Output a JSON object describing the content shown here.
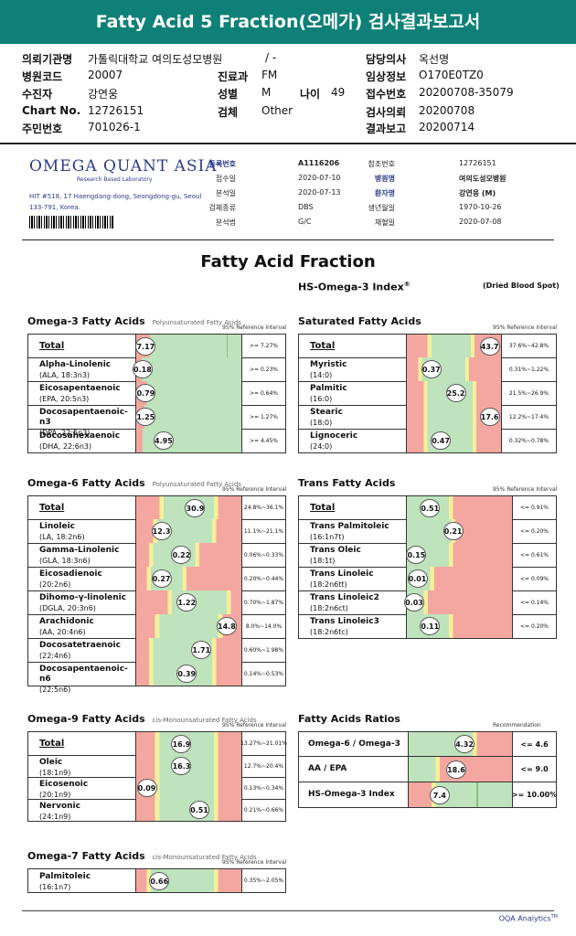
{
  "header": {
    "title": "Fatty Acid 5 Fraction(오메가) 검사결과보고서"
  },
  "patient": {
    "hospital_label": "의뢰기관명",
    "hospital": "가톨릭대학교 여의도성모병원",
    "slash": "/ -",
    "code_label": "병원코드",
    "code": "20007",
    "receiver_label": "수진자",
    "receiver": "강연웅",
    "chart_label": "Chart No.",
    "chart": "12726151",
    "id_label": "주민번호",
    "id": "701026-1",
    "dept_label": "진료과",
    "dept": "FM",
    "sex_label": "성별",
    "sex": "M",
    "age_label": "나이",
    "age": "49",
    "test_label": "검체",
    "test": "Other",
    "doctor_label": "담당의사",
    "doctor": "옥선명",
    "info_label": "임상정보",
    "info": "O170E0TZ0",
    "reg_label": "접수번호",
    "reg": "20200708-35079",
    "req_label": "검사의뢰",
    "req": "20200708",
    "report_label": "결과보고",
    "report": "20200714"
  },
  "lab": {
    "logo": "OMEGA QUANT ASIA",
    "logo_sub": "Research Based Laboratory",
    "address": "HIT #518, 17 Haengdang-dong, Seongdong-gu, Seoul 133-791, Korea.",
    "fields_left": [
      {
        "k": "등록번호",
        "v": "A1116206",
        "bold": true
      },
      {
        "k": "접수일",
        "v": "2020-07-10",
        "bold": false
      },
      {
        "k": "분석일",
        "v": "2020-07-13",
        "bold": false
      },
      {
        "k": "검체종류",
        "v": "DBS",
        "bold": false
      },
      {
        "k": "분석법",
        "v": "G/C",
        "bold": false
      }
    ],
    "fields_right": [
      {
        "k": "참조번호",
        "v": "12726151",
        "bold": false
      },
      {
        "k": "병원명",
        "v": "여의도성모병원",
        "bold": true
      },
      {
        "k": "환자명",
        "v": "강연웅 (M)",
        "bold": true
      },
      {
        "k": "생년월일",
        "v": "1970-10-26",
        "bold": false
      },
      {
        "k": "채혈일",
        "v": "2020-07-08",
        "bold": false
      }
    ]
  },
  "report": {
    "title": "Fatty Acid Fraction",
    "subtitle": "HS-Omega-3 Index",
    "subtitle_sup": "®",
    "sample": "(Dried Blood Spot)"
  },
  "panels": [
    {
      "title": "Omega-3 Fatty Acids",
      "note": "Polyunsaturated Fatty Acids",
      "ref_header": "95% Reference Interval",
      "rows": [
        {
          "name": "Total",
          "sub": "",
          "total": true,
          "value": "7.17",
          "pos": 0.09,
          "bands": [
            [
              "#f4a7a0",
              0.13
            ],
            [
              "#bfe3bd",
              0.73
            ],
            [
              "#4e9e4e",
              0.005
            ],
            [
              "#bfe3bd",
              0.135
            ]
          ],
          "ref": ">= 7.27%"
        },
        {
          "name": "Alpha-Linolenic",
          "sub": "(ALA, 18:3n3)",
          "total": false,
          "value": "0.18",
          "pos": 0.06,
          "bands": [
            [
              "#f4a7a0",
              0.05
            ],
            [
              "#bfe3bd",
              0.95
            ]
          ],
          "ref": ">= 0.23%"
        },
        {
          "name": "Eicosapentaenoic",
          "sub": "(EPA, 20:5n3)",
          "total": false,
          "value": "0.79",
          "pos": 0.09,
          "bands": [
            [
              "#f4a7a0",
              0.1
            ],
            [
              "#bfe3bd",
              0.9
            ]
          ],
          "ref": ">= 0.64%"
        },
        {
          "name": "Docosapentaenoic-n3",
          "sub": "(DPA, 22:5n3)",
          "total": false,
          "value": "1.25",
          "pos": 0.09,
          "bands": [
            [
              "#f4a7a0",
              0.08
            ],
            [
              "#bfe3bd",
              0.92
            ]
          ],
          "ref": ">= 1.27%"
        },
        {
          "name": "Docosahexaenoic",
          "sub": "(DHA, 22:6n3)",
          "total": false,
          "value": "4.95",
          "pos": 0.26,
          "bands": [
            [
              "#f4a7a0",
              0.06
            ],
            [
              "#bfe3bd",
              0.94
            ]
          ],
          "ref": ">= 4.45%"
        }
      ]
    },
    {
      "title": "Saturated Fatty Acids",
      "note": "",
      "ref_header": "95% Reference Interval",
      "rows": [
        {
          "name": "Total",
          "sub": "",
          "total": true,
          "value": "43.7",
          "pos": 0.88,
          "bands": [
            [
              "#f4a7a0",
              0.22
            ],
            [
              "#f6f09a",
              0.04
            ],
            [
              "#bfe3bd",
              0.42
            ],
            [
              "#f6f09a",
              0.04
            ],
            [
              "#f4a7a0",
              0.28
            ]
          ],
          "ref": "37.6%~42.8%"
        },
        {
          "name": "Myristic",
          "sub": "(14:0)",
          "total": false,
          "value": "0.37",
          "pos": 0.26,
          "bands": [
            [
              "#f4a7a0",
              0.12
            ],
            [
              "#f6f09a",
              0.04
            ],
            [
              "#bfe3bd",
              0.46
            ],
            [
              "#f6f09a",
              0.04
            ],
            [
              "#f4a7a0",
              0.34
            ]
          ],
          "ref": "0.31%~1.22%"
        },
        {
          "name": "Palmitic",
          "sub": "(16:0)",
          "total": false,
          "value": "25.2",
          "pos": 0.52,
          "bands": [
            [
              "#f4a7a0",
              0.18
            ],
            [
              "#f6f09a",
              0.04
            ],
            [
              "#bfe3bd",
              0.48
            ],
            [
              "#f6f09a",
              0.04
            ],
            [
              "#f4a7a0",
              0.26
            ]
          ],
          "ref": "21.5%~26.9%"
        },
        {
          "name": "Stearic",
          "sub": "(18:0)",
          "total": false,
          "value": "17.6",
          "pos": 0.88,
          "bands": [
            [
              "#f4a7a0",
              0.18
            ],
            [
              "#f6f09a",
              0.04
            ],
            [
              "#bfe3bd",
              0.48
            ],
            [
              "#f6f09a",
              0.04
            ],
            [
              "#f4a7a0",
              0.26
            ]
          ],
          "ref": "12.2%~17.4%"
        },
        {
          "name": "Lignoceric",
          "sub": "(24:0)",
          "total": false,
          "value": "0.47",
          "pos": 0.36,
          "bands": [
            [
              "#f4a7a0",
              0.18
            ],
            [
              "#f6f09a",
              0.04
            ],
            [
              "#bfe3bd",
              0.48
            ],
            [
              "#f6f09a",
              0.04
            ],
            [
              "#f4a7a0",
              0.26
            ]
          ],
          "ref": "0.32%~0.78%"
        }
      ]
    },
    {
      "title": "Omega-6 Fatty Acids",
      "note": "Polyunsaturated Fatty Acids",
      "ref_header": "95% Reference Interval",
      "rows": [
        {
          "name": "Total",
          "sub": "",
          "total": true,
          "value": "30.9",
          "pos": 0.56,
          "bands": [
            [
              "#f4a7a0",
              0.22
            ],
            [
              "#f6f09a",
              0.04
            ],
            [
              "#bfe3bd",
              0.48
            ],
            [
              "#f6f09a",
              0.04
            ],
            [
              "#f4a7a0",
              0.22
            ]
          ],
          "ref": "24.8%~36.1%"
        },
        {
          "name": "Linoleic",
          "sub": "(LA, 18:2n6)",
          "total": false,
          "value": "12.3",
          "pos": 0.24,
          "bands": [
            [
              "#f4a7a0",
              0.16
            ],
            [
              "#f6f09a",
              0.04
            ],
            [
              "#bfe3bd",
              0.52
            ],
            [
              "#f6f09a",
              0.04
            ],
            [
              "#f4a7a0",
              0.24
            ]
          ],
          "ref": "11.1%~21.1%"
        },
        {
          "name": "Gamma-Linolenic",
          "sub": "(GLA, 18:3n6)",
          "total": false,
          "value": "0.22",
          "pos": 0.43,
          "bands": [
            [
              "#f4a7a0",
              0.12
            ],
            [
              "#f6f09a",
              0.04
            ],
            [
              "#bfe3bd",
              0.4
            ],
            [
              "#f6f09a",
              0.04
            ],
            [
              "#f4a7a0",
              0.4
            ]
          ],
          "ref": "0.06%~0.33%"
        },
        {
          "name": "Eicosadienoic",
          "sub": "(20:2n6)",
          "total": false,
          "value": "0.27",
          "pos": 0.24,
          "bands": [
            [
              "#f4a7a0",
              0.1
            ],
            [
              "#f6f09a",
              0.04
            ],
            [
              "#bfe3bd",
              0.3
            ],
            [
              "#f6f09a",
              0.04
            ],
            [
              "#f4a7a0",
              0.52
            ]
          ],
          "ref": "0.20%~0.44%"
        },
        {
          "name": "Dihomo-γ-linolenic",
          "sub": "(DGLA, 20:3n6)",
          "total": false,
          "value": "1.22",
          "pos": 0.48,
          "bands": [
            [
              "#f4a7a0",
              0.3
            ],
            [
              "#f6f09a",
              0.04
            ],
            [
              "#bfe3bd",
              0.52
            ],
            [
              "#f6f09a",
              0.04
            ],
            [
              "#f4a7a0",
              0.1
            ]
          ],
          "ref": "0.70%~1.87%"
        },
        {
          "name": "Arachidonic",
          "sub": "(AA, 20:4n6)",
          "total": false,
          "value": "14.8",
          "pos": 0.86,
          "bands": [
            [
              "#f4a7a0",
              0.18
            ],
            [
              "#f6f09a",
              0.04
            ],
            [
              "#bfe3bd",
              0.56
            ],
            [
              "#f6f09a",
              0.04
            ],
            [
              "#f4a7a0",
              0.18
            ]
          ],
          "ref": "8.0%~14.0%"
        },
        {
          "name": "Docosatetraenoic",
          "sub": "(22:4n6)",
          "total": false,
          "value": "1.71",
          "pos": 0.62,
          "bands": [
            [
              "#f4a7a0",
              0.12
            ],
            [
              "#f6f09a",
              0.04
            ],
            [
              "#bfe3bd",
              0.56
            ],
            [
              "#f6f09a",
              0.04
            ],
            [
              "#f4a7a0",
              0.24
            ]
          ],
          "ref": "0.60%~1.98%"
        },
        {
          "name": "Docosapentaenoic-n6",
          "sub": "(22:5n6)",
          "total": false,
          "value": "0.39",
          "pos": 0.48,
          "bands": [
            [
              "#f4a7a0",
              0.12
            ],
            [
              "#f6f09a",
              0.04
            ],
            [
              "#bfe3bd",
              0.56
            ],
            [
              "#f6f09a",
              0.04
            ],
            [
              "#f4a7a0",
              0.24
            ]
          ],
          "ref": "0.14%~0.53%"
        }
      ]
    },
    {
      "title": "Trans Fatty Acids",
      "note": "",
      "ref_header": "95% Reference Interval",
      "rows": [
        {
          "name": "Total",
          "sub": "",
          "total": true,
          "value": "0.51",
          "pos": 0.22,
          "bands": [
            [
              "#bfe3bd",
              0.4
            ],
            [
              "#f6f09a",
              0.04
            ],
            [
              "#f4a7a0",
              0.56
            ]
          ],
          "ref": "<= 0.91%"
        },
        {
          "name": "Trans Palmitoleic",
          "sub": "(16:1n7t)",
          "total": false,
          "value": "0.21",
          "pos": 0.44,
          "bands": [
            [
              "#bfe3bd",
              0.42
            ],
            [
              "#f6f09a",
              0.04
            ],
            [
              "#f4a7a0",
              0.54
            ]
          ],
          "ref": "<= 0.20%"
        },
        {
          "name": "Trans Oleic",
          "sub": "(18:1t)",
          "total": false,
          "value": "0.15",
          "pos": 0.09,
          "bands": [
            [
              "#bfe3bd",
              0.4
            ],
            [
              "#f6f09a",
              0.04
            ],
            [
              "#f4a7a0",
              0.56
            ]
          ],
          "ref": "<= 0.61%"
        },
        {
          "name": "Trans Linoleic",
          "sub": "(18:2n6tt)",
          "total": false,
          "value": "0.01",
          "pos": 0.1,
          "bands": [
            [
              "#bfe3bd",
              0.22
            ],
            [
              "#f6f09a",
              0.04
            ],
            [
              "#f4a7a0",
              0.74
            ]
          ],
          "ref": "<= 0.09%"
        },
        {
          "name": "Trans Linoleic2",
          "sub": "(18:2n6ct)",
          "total": false,
          "value": "0.03",
          "pos": 0.07,
          "bands": [
            [
              "#bfe3bd",
              0.16
            ],
            [
              "#f6f09a",
              0.04
            ],
            [
              "#f4a7a0",
              0.8
            ]
          ],
          "ref": "<= 0.14%"
        },
        {
          "name": "Trans Linoleic3",
          "sub": "(18:2n6tc)",
          "total": false,
          "value": "0.11",
          "pos": 0.22,
          "bands": [
            [
              "#bfe3bd",
              0.4
            ],
            [
              "#f6f09a",
              0.04
            ],
            [
              "#f4a7a0",
              0.56
            ]
          ],
          "ref": "<= 0.20%"
        }
      ]
    },
    {
      "title": "Omega-9 Fatty Acids",
      "note": "cis-Monounsaturated Fatty Acids",
      "ref_header": "95% Reference Interval",
      "rows": [
        {
          "name": "Total",
          "sub": "",
          "total": true,
          "value": "16.9",
          "pos": 0.43,
          "bands": [
            [
              "#f4a7a0",
              0.18
            ],
            [
              "#f6f09a",
              0.04
            ],
            [
              "#bfe3bd",
              0.52
            ],
            [
              "#f6f09a",
              0.04
            ],
            [
              "#f4a7a0",
              0.22
            ]
          ],
          "ref": "13.27%~21.01%"
        },
        {
          "name": "Oleic",
          "sub": "(18:1n9)",
          "total": false,
          "value": "16.3",
          "pos": 0.43,
          "bands": [
            [
              "#f4a7a0",
              0.18
            ],
            [
              "#f6f09a",
              0.04
            ],
            [
              "#bfe3bd",
              0.52
            ],
            [
              "#f6f09a",
              0.04
            ],
            [
              "#f4a7a0",
              0.22
            ]
          ],
          "ref": "12.7%~20.4%"
        },
        {
          "name": "Eicosenoic",
          "sub": "(20:1n9)",
          "total": false,
          "value": "0.09",
          "pos": 0.1,
          "bands": [
            [
              "#f4a7a0",
              0.18
            ],
            [
              "#f6f09a",
              0.04
            ],
            [
              "#bfe3bd",
              0.52
            ],
            [
              "#f6f09a",
              0.04
            ],
            [
              "#f4a7a0",
              0.22
            ]
          ],
          "ref": "0.13%~0.34%"
        },
        {
          "name": "Nervonic",
          "sub": "(24:1n9)",
          "total": false,
          "value": "0.51",
          "pos": 0.6,
          "bands": [
            [
              "#f4a7a0",
              0.18
            ],
            [
              "#f6f09a",
              0.04
            ],
            [
              "#bfe3bd",
              0.52
            ],
            [
              "#f6f09a",
              0.04
            ],
            [
              "#f4a7a0",
              0.22
            ]
          ],
          "ref": "0.21%~0.66%"
        }
      ]
    },
    {
      "title": "Fatty Acids Ratios",
      "note": "",
      "ref_header": "Recommendation",
      "rows": [
        {
          "name": "Omega-6 / Omega-3",
          "sub": "",
          "total": false,
          "ratio": true,
          "value": "4.32",
          "pos": 0.54,
          "bands": [
            [
              "#bfe3bd",
              0.62
            ],
            [
              "#f6f09a",
              0.04
            ],
            [
              "#f4a7a0",
              0.34
            ]
          ],
          "ref": "<= 4.6"
        },
        {
          "name": "AA / EPA",
          "sub": "",
          "total": false,
          "ratio": true,
          "value": "18.6",
          "pos": 0.46,
          "bands": [
            [
              "#bfe3bd",
              0.26
            ],
            [
              "#f6f09a",
              0.04
            ],
            [
              "#f4a7a0",
              0.7
            ]
          ],
          "ref": "<= 9.0"
        },
        {
          "name": "HS-Omega-3 Index",
          "sub": "",
          "total": false,
          "ratio": true,
          "value": "7.4",
          "pos": 0.3,
          "bands": [
            [
              "#f4a7a0",
              0.22
            ],
            [
              "#f6f09a",
              0.04
            ],
            [
              "#bfe3bd",
              0.4
            ],
            [
              "#4e9e4e",
              0.01
            ],
            [
              "#bfe3bd",
              0.33
            ]
          ],
          "ref": ">= 10.00%"
        }
      ]
    },
    {
      "title": "Omega-7 Fatty Acids",
      "note": "cis-Monounsaturated Fatty Acids",
      "ref_header": "95% Reference Interval",
      "rows": [
        {
          "name": "Palmitoleic",
          "sub": "(16:1n7)",
          "total": false,
          "value": "0.66",
          "pos": 0.22,
          "bands": [
            [
              "#f4a7a0",
              0.1
            ],
            [
              "#f6f09a",
              0.04
            ],
            [
              "#bfe3bd",
              0.6
            ],
            [
              "#f6f09a",
              0.04
            ],
            [
              "#f4a7a0",
              0.22
            ]
          ],
          "ref": "0.35%~2.05%"
        }
      ]
    }
  ],
  "footer": {
    "brand": "OQA Analytics",
    "tm": "TM"
  }
}
